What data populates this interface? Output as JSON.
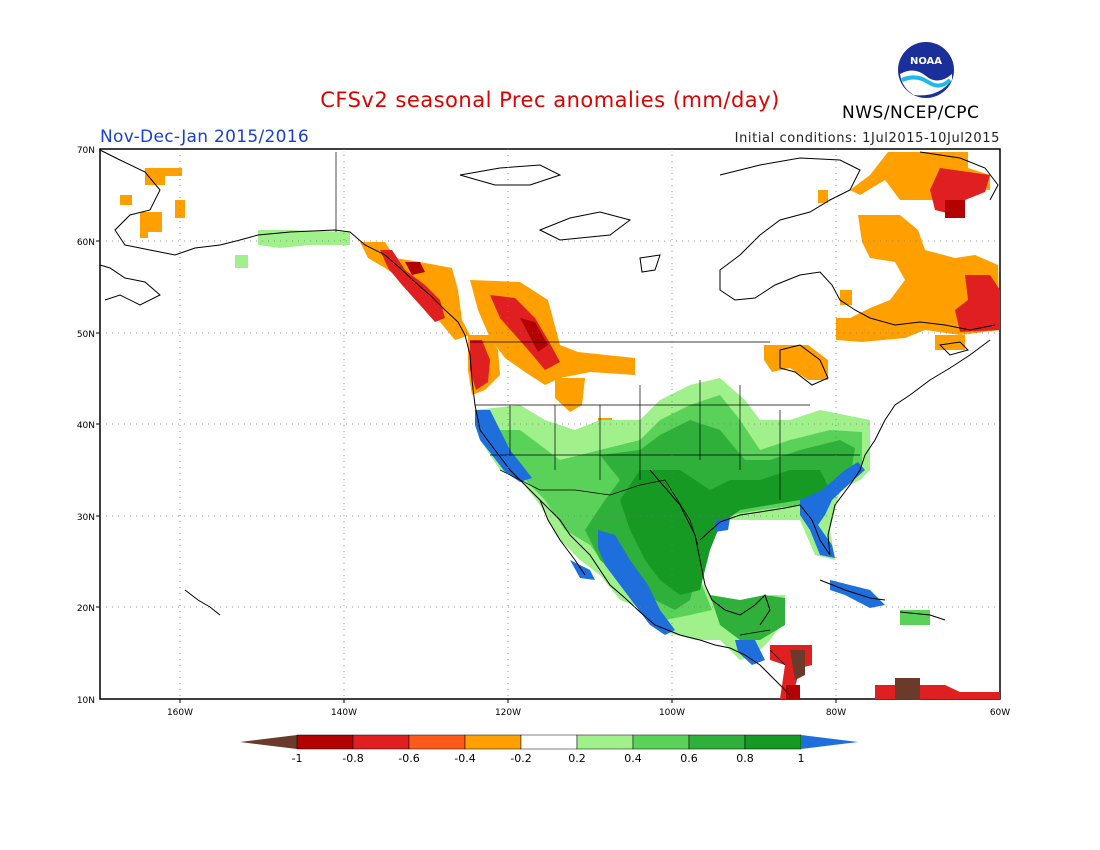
{
  "title": "CFSv2 seasonal Prec anomalies (mm/day)",
  "period": "Nov-Dec-Jan 2015/2016",
  "initial_conditions": "Initial conditions: 1Jul2015-10Jul2015",
  "agency": "NWS/NCEP/CPC",
  "logo_text": "NOAA",
  "map": {
    "lat_ticks": [
      "70N",
      "60N",
      "50N",
      "40N",
      "30N",
      "20N",
      "10N"
    ],
    "lon_ticks": [
      "160W",
      "140W",
      "120W",
      "100W",
      "80W",
      "60W"
    ],
    "grid": "dotted"
  },
  "colorbar": {
    "labels": [
      "-1",
      "-0.8",
      "-0.6",
      "-0.4",
      "-0.2",
      "0.2",
      "0.4",
      "0.6",
      "0.8",
      "1"
    ],
    "colors": [
      "#6b3a2a",
      "#b30000",
      "#e02020",
      "#ff5a1a",
      "#ffa000",
      "#ffffff",
      "#a0f08c",
      "#5ad25a",
      "#2fb03a",
      "#169a24",
      "#1e6fdc"
    ]
  },
  "legend": {
    "dry_color": "#ffa000",
    "very_dry_color": "#d01010",
    "wet_color": "#2fb03a",
    "very_wet_color": "#1e6fdc"
  }
}
